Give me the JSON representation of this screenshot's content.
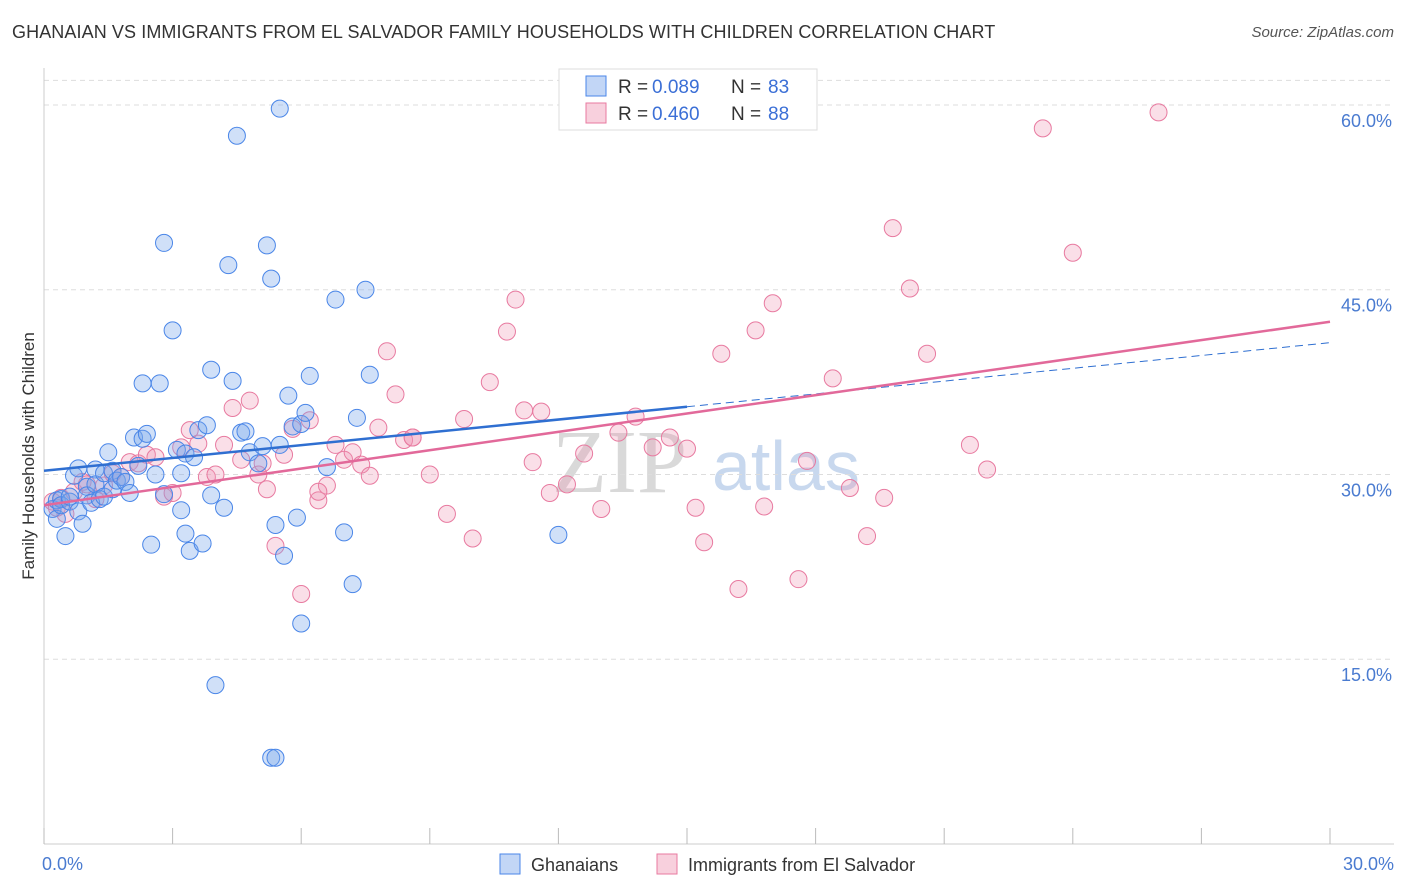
{
  "title": "GHANAIAN VS IMMIGRANTS FROM EL SALVADOR FAMILY HOUSEHOLDS WITH CHILDREN CORRELATION CHART",
  "source": "Source: ZipAtlas.com",
  "watermark": {
    "zip": "ZIP",
    "atlas": "atlas"
  },
  "legend_top": {
    "rows": [
      {
        "r_label": "R =",
        "r_value": "0.089",
        "n_label": "N =",
        "n_value": "83"
      },
      {
        "r_label": "R =",
        "r_value": "0.460",
        "n_label": "N =",
        "n_value": "88"
      }
    ]
  },
  "legend_bottom": {
    "items": [
      "Ghanaians",
      "Immigrants from El Salvador"
    ]
  },
  "colors": {
    "blue": "#4a86e8",
    "blue_fill": "rgba(120,165,235,0.35)",
    "blue_line": "#2f6fd1",
    "pink": "#e87aa0",
    "pink_fill": "rgba(240,150,180,0.30)",
    "pink_line": "#e2699a",
    "grid": "#dddddd"
  },
  "chart_data": {
    "type": "scatter",
    "xlabel": "",
    "ylabel": "Family Households with Children",
    "xlim": [
      0,
      30
    ],
    "ylim": [
      0,
      63
    ],
    "x_tick_labels": [
      {
        "v": 0,
        "label": "0.0%"
      },
      {
        "v": 30,
        "label": "30.0%"
      }
    ],
    "y_tick_labels": [
      {
        "v": 15,
        "label": "15.0%"
      },
      {
        "v": 30,
        "label": "30.0%"
      },
      {
        "v": 45,
        "label": "45.0%"
      },
      {
        "v": 60,
        "label": "60.0%"
      }
    ],
    "series": [
      {
        "name": "Ghanaians",
        "trend": {
          "x0": 0,
          "y0": 30.3,
          "x1": 15,
          "y1": 35.5,
          "x_ext": 30,
          "y_ext": 40.7
        },
        "points": [
          [
            0.2,
            27.2
          ],
          [
            0.3,
            27.9
          ],
          [
            0.3,
            26.4
          ],
          [
            0.4,
            28.0
          ],
          [
            0.4,
            27.5
          ],
          [
            0.5,
            25.0
          ],
          [
            0.6,
            27.8
          ],
          [
            0.6,
            28.2
          ],
          [
            0.7,
            29.9
          ],
          [
            0.8,
            30.5
          ],
          [
            0.8,
            27.0
          ],
          [
            0.9,
            26.0
          ],
          [
            1.0,
            29.0
          ],
          [
            1.0,
            28.3
          ],
          [
            1.1,
            27.7
          ],
          [
            1.2,
            30.4
          ],
          [
            1.2,
            29.2
          ],
          [
            1.3,
            28.0
          ],
          [
            1.4,
            30.1
          ],
          [
            1.4,
            28.2
          ],
          [
            1.5,
            31.8
          ],
          [
            1.6,
            30.3
          ],
          [
            1.6,
            28.8
          ],
          [
            1.7,
            29.5
          ],
          [
            1.8,
            29.8
          ],
          [
            1.9,
            29.4
          ],
          [
            2.0,
            28.5
          ],
          [
            2.1,
            33.0
          ],
          [
            2.2,
            30.7
          ],
          [
            2.3,
            37.4
          ],
          [
            2.3,
            32.9
          ],
          [
            2.4,
            33.3
          ],
          [
            2.5,
            24.3
          ],
          [
            2.6,
            30.0
          ],
          [
            2.7,
            37.4
          ],
          [
            2.8,
            28.4
          ],
          [
            2.8,
            48.8
          ],
          [
            3.0,
            41.7
          ],
          [
            3.1,
            32.0
          ],
          [
            3.2,
            27.1
          ],
          [
            3.3,
            25.2
          ],
          [
            3.3,
            31.7
          ],
          [
            3.4,
            23.8
          ],
          [
            3.5,
            31.4
          ],
          [
            3.6,
            33.6
          ],
          [
            3.7,
            24.4
          ],
          [
            3.8,
            34.0
          ],
          [
            3.9,
            28.3
          ],
          [
            3.9,
            38.5
          ],
          [
            4.0,
            12.9
          ],
          [
            4.2,
            27.3
          ],
          [
            4.3,
            47.0
          ],
          [
            4.4,
            37.6
          ],
          [
            4.5,
            57.5
          ],
          [
            4.6,
            33.4
          ],
          [
            4.7,
            33.5
          ],
          [
            4.8,
            31.8
          ],
          [
            5.0,
            30.9
          ],
          [
            5.1,
            32.3
          ],
          [
            5.2,
            48.6
          ],
          [
            5.3,
            45.9
          ],
          [
            5.4,
            25.9
          ],
          [
            5.5,
            32.4
          ],
          [
            5.6,
            23.4
          ],
          [
            5.7,
            36.4
          ],
          [
            5.8,
            33.9
          ],
          [
            5.9,
            26.5
          ],
          [
            6.0,
            34.1
          ],
          [
            6.0,
            17.9
          ],
          [
            6.1,
            35.0
          ],
          [
            6.2,
            38.0
          ],
          [
            6.6,
            30.6
          ],
          [
            6.8,
            44.2
          ],
          [
            7.0,
            25.3
          ],
          [
            7.2,
            21.1
          ],
          [
            7.3,
            34.6
          ],
          [
            7.5,
            45.0
          ],
          [
            7.6,
            38.1
          ],
          [
            5.5,
            59.7
          ],
          [
            5.3,
            7.0
          ],
          [
            5.4,
            7.0
          ],
          [
            12.0,
            25.1
          ],
          [
            3.2,
            30.1
          ]
        ]
      },
      {
        "name": "Immigrants from El Salvador",
        "trend": {
          "x0": 0,
          "y0": 27.5,
          "x1": 30,
          "y1": 42.4
        },
        "points": [
          [
            0.2,
            27.8
          ],
          [
            0.3,
            27.3
          ],
          [
            0.4,
            28.1
          ],
          [
            0.5,
            26.8
          ],
          [
            0.7,
            28.6
          ],
          [
            0.9,
            29.4
          ],
          [
            1.0,
            29.2
          ],
          [
            1.2,
            28.0
          ],
          [
            1.4,
            29.1
          ],
          [
            1.6,
            30.1
          ],
          [
            1.8,
            29.8
          ],
          [
            2.0,
            31.0
          ],
          [
            2.2,
            30.9
          ],
          [
            2.4,
            31.6
          ],
          [
            2.6,
            31.4
          ],
          [
            2.8,
            28.2
          ],
          [
            3.0,
            28.5
          ],
          [
            3.2,
            32.2
          ],
          [
            3.4,
            33.6
          ],
          [
            3.6,
            32.5
          ],
          [
            3.8,
            29.8
          ],
          [
            4.0,
            30.0
          ],
          [
            4.2,
            32.4
          ],
          [
            4.4,
            35.4
          ],
          [
            4.6,
            31.2
          ],
          [
            4.8,
            36.0
          ],
          [
            5.0,
            30.0
          ],
          [
            5.1,
            30.9
          ],
          [
            5.2,
            28.8
          ],
          [
            5.4,
            24.2
          ],
          [
            5.6,
            31.6
          ],
          [
            5.8,
            33.7
          ],
          [
            6.0,
            20.3
          ],
          [
            6.2,
            34.4
          ],
          [
            6.4,
            27.9
          ],
          [
            6.6,
            29.1
          ],
          [
            6.8,
            32.4
          ],
          [
            7.0,
            31.2
          ],
          [
            7.2,
            31.8
          ],
          [
            7.4,
            30.8
          ],
          [
            7.6,
            29.9
          ],
          [
            7.8,
            33.8
          ],
          [
            8.0,
            40.0
          ],
          [
            8.2,
            36.5
          ],
          [
            8.4,
            32.8
          ],
          [
            8.6,
            33.0
          ],
          [
            9.0,
            30.0
          ],
          [
            9.4,
            26.8
          ],
          [
            9.8,
            34.5
          ],
          [
            10.0,
            24.8
          ],
          [
            10.4,
            37.5
          ],
          [
            10.8,
            41.6
          ],
          [
            11.0,
            44.2
          ],
          [
            11.2,
            35.2
          ],
          [
            11.4,
            31.0
          ],
          [
            11.6,
            35.1
          ],
          [
            11.8,
            28.5
          ],
          [
            12.2,
            29.2
          ],
          [
            12.6,
            31.7
          ],
          [
            13.0,
            27.2
          ],
          [
            13.4,
            33.4
          ],
          [
            13.8,
            34.7
          ],
          [
            14.2,
            32.2
          ],
          [
            14.6,
            33.0
          ],
          [
            15.0,
            32.1
          ],
          [
            15.2,
            27.3
          ],
          [
            15.4,
            24.5
          ],
          [
            15.8,
            39.8
          ],
          [
            16.2,
            20.7
          ],
          [
            16.6,
            41.7
          ],
          [
            16.8,
            27.4
          ],
          [
            17.0,
            43.9
          ],
          [
            17.6,
            21.5
          ],
          [
            17.8,
            31.1
          ],
          [
            18.4,
            37.8
          ],
          [
            18.8,
            28.9
          ],
          [
            19.2,
            25.0
          ],
          [
            19.6,
            28.1
          ],
          [
            19.8,
            50.0
          ],
          [
            20.2,
            45.1
          ],
          [
            20.6,
            39.8
          ],
          [
            21.6,
            32.4
          ],
          [
            22.0,
            30.4
          ],
          [
            23.3,
            58.1
          ],
          [
            24.0,
            48.0
          ],
          [
            26.0,
            59.4
          ],
          [
            6.4,
            28.6
          ],
          [
            8.6,
            33.0
          ]
        ]
      }
    ]
  }
}
